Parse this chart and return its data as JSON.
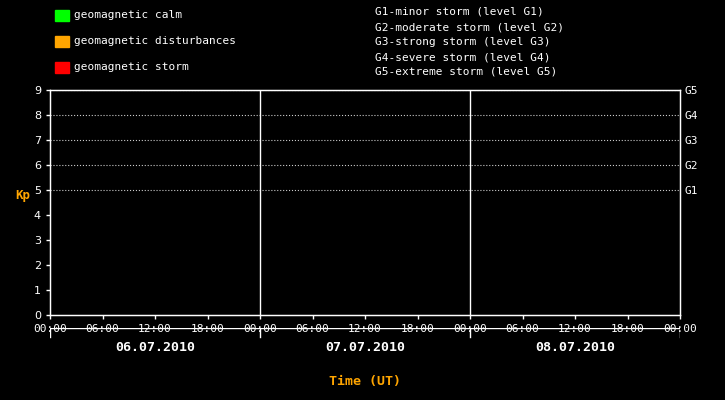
{
  "bg_color": "#000000",
  "plot_bg_color": "#000000",
  "text_color": "#ffffff",
  "axis_color": "#ffffff",
  "grid_color": "#ffffff",
  "orange_color": "#ffa500",
  "title_xlabel": "Time (UT)",
  "ylabel": "Kp",
  "ylim": [
    0,
    9
  ],
  "yticks": [
    0,
    1,
    2,
    3,
    4,
    5,
    6,
    7,
    8,
    9
  ],
  "days": [
    "06.07.2010",
    "07.07.2010",
    "08.07.2010"
  ],
  "xtick_labels": [
    "00:00",
    "06:00",
    "12:00",
    "18:00",
    "00:00",
    "06:00",
    "12:00",
    "18:00",
    "00:00",
    "06:00",
    "12:00",
    "18:00",
    "00:00"
  ],
  "xtick_positions": [
    0,
    6,
    12,
    18,
    24,
    30,
    36,
    42,
    48,
    54,
    60,
    66,
    72
  ],
  "day_centers": [
    12,
    36,
    60
  ],
  "day_dividers": [
    24,
    48
  ],
  "legend_left_items": [
    {
      "label": "geomagnetic calm",
      "color": "#00ff00"
    },
    {
      "label": "geomagnetic disturbances",
      "color": "#ffa500"
    },
    {
      "label": "geomagnetic storm",
      "color": "#ff0000"
    }
  ],
  "legend_right_lines": [
    "G1-minor storm (level G1)",
    "G2-moderate storm (level G2)",
    "G3-strong storm (level G3)",
    "G4-severe storm (level G4)",
    "G5-extreme storm (level G5)"
  ],
  "g_labels": [
    "G5",
    "G4",
    "G3",
    "G2",
    "G1"
  ],
  "g_label_yvals": [
    9,
    8,
    7,
    6,
    5
  ],
  "dotted_yvals": [
    5,
    6,
    7,
    8,
    9
  ],
  "font_size": 8.0,
  "legend_font_size": 8.0
}
